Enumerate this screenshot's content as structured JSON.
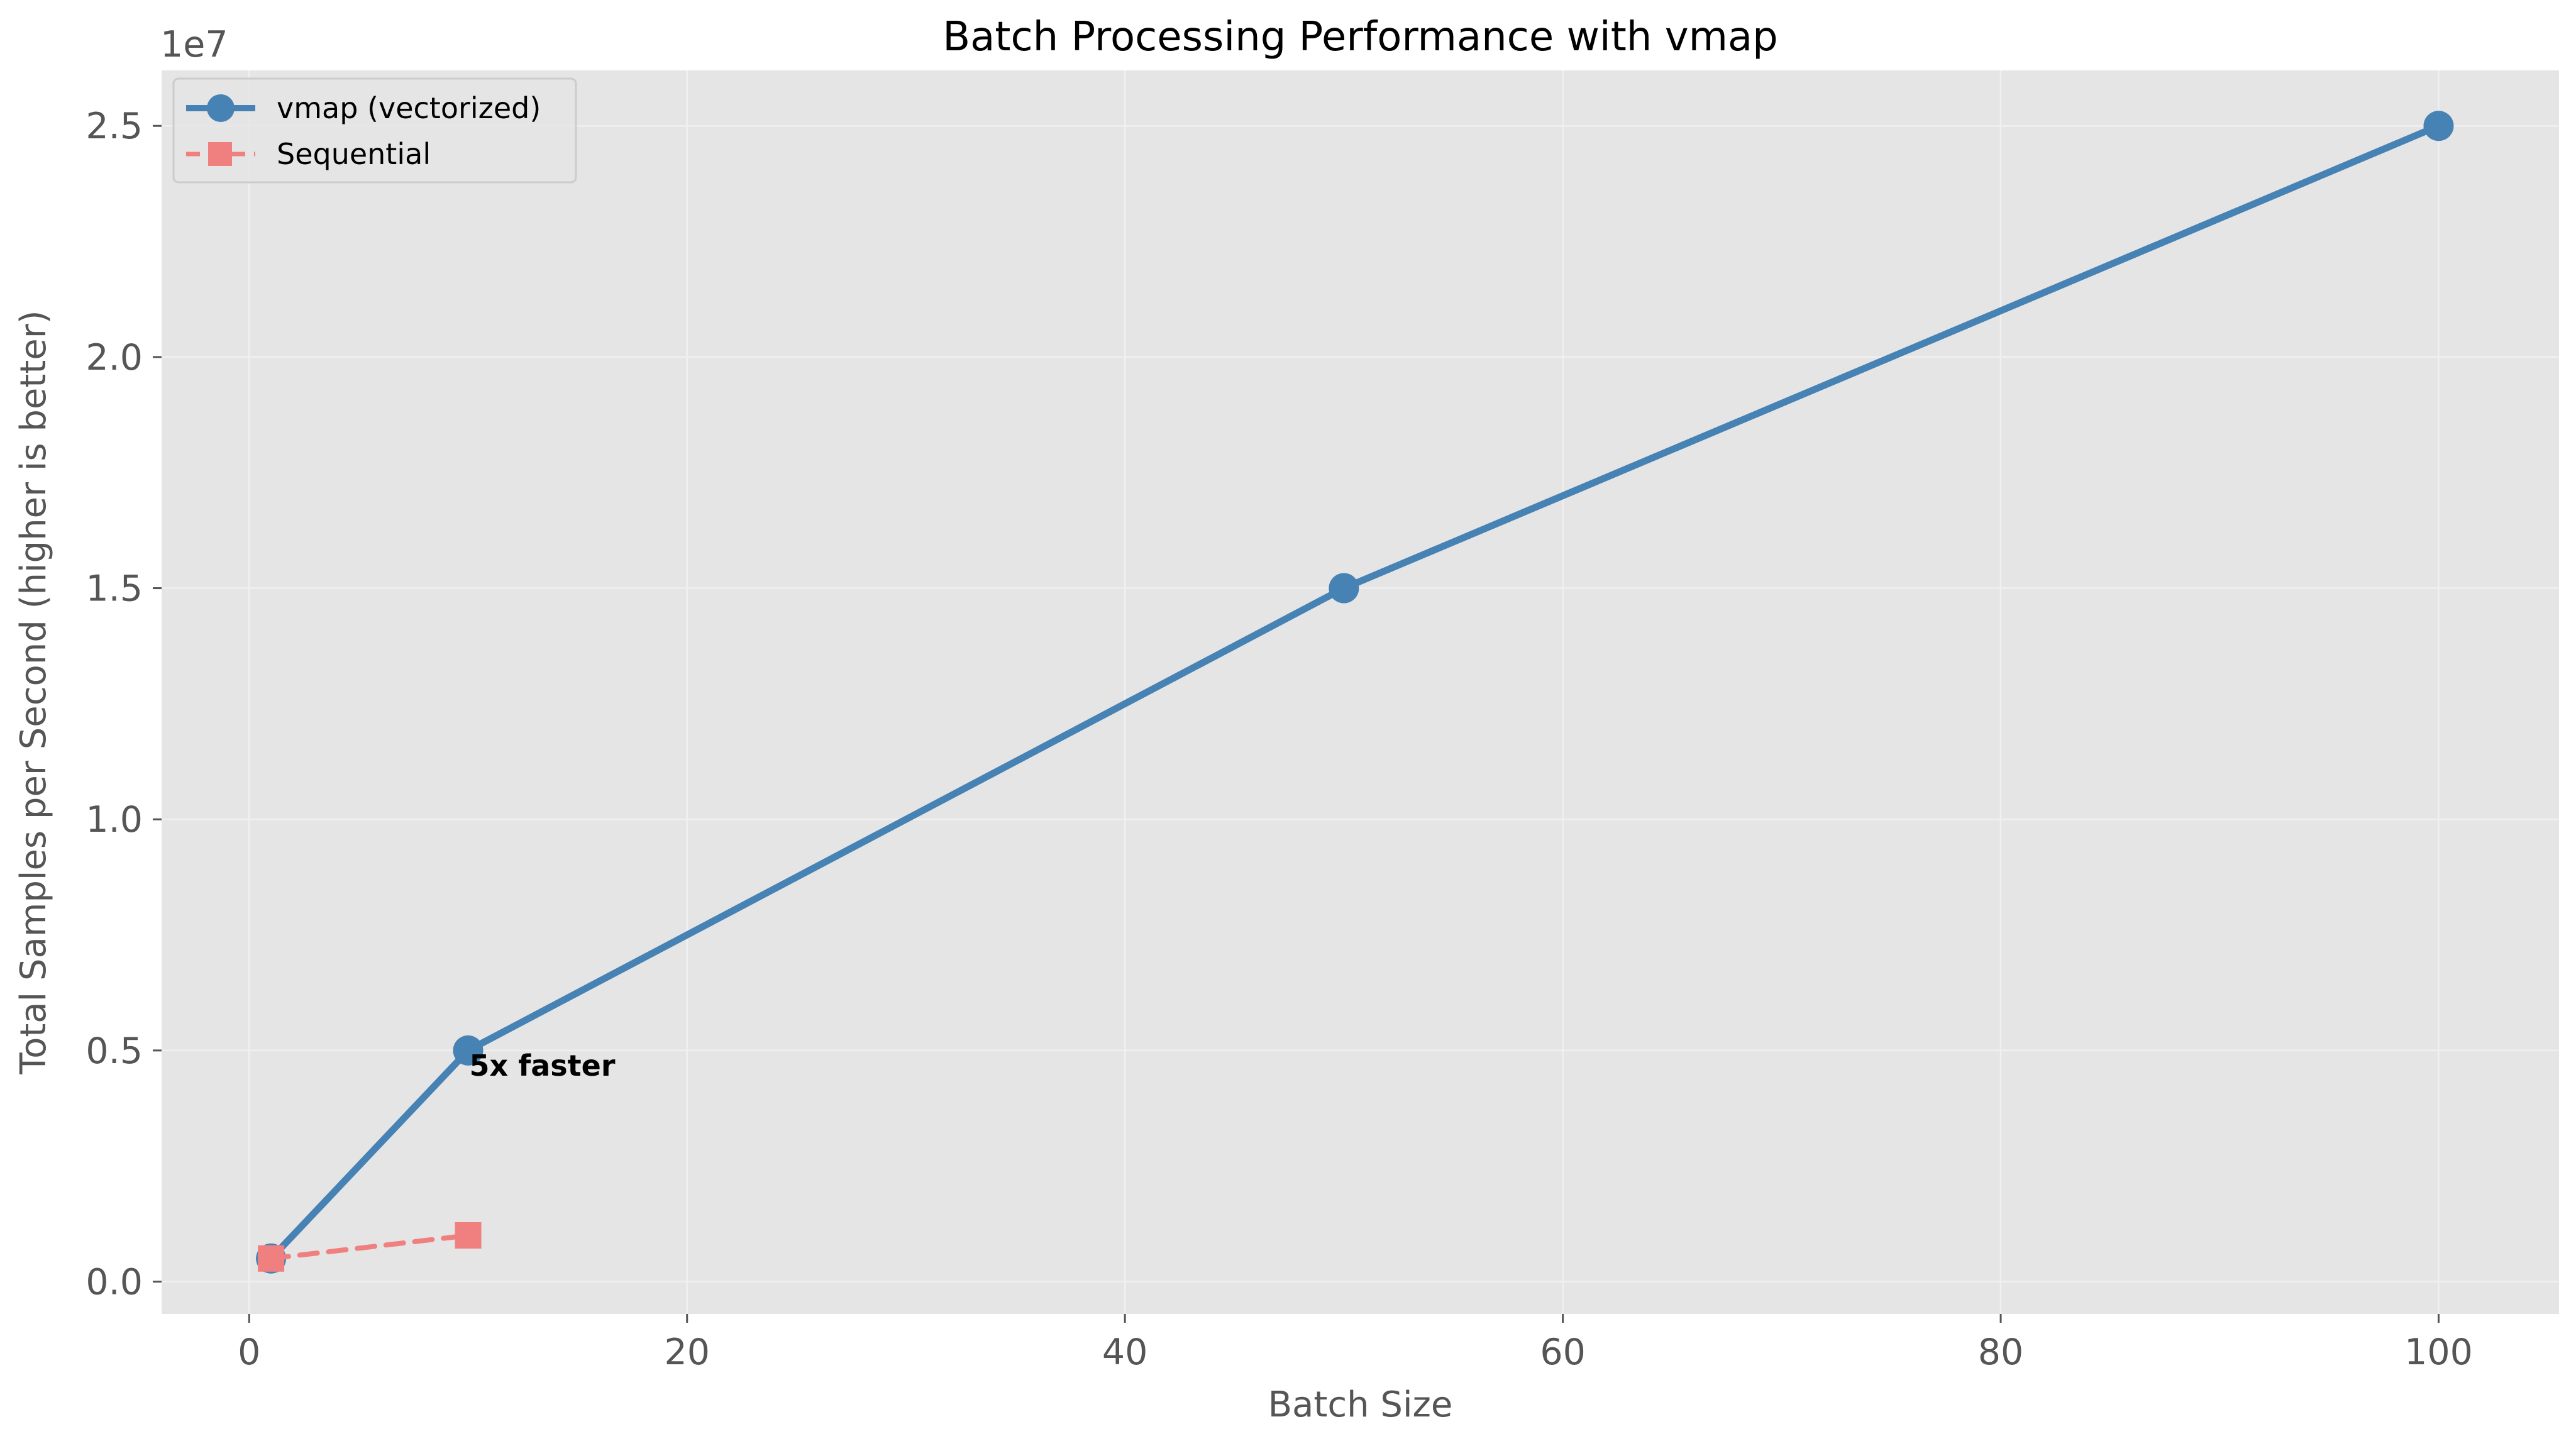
{
  "chart_data": {
    "type": "line",
    "title": "Batch Processing Performance with vmap",
    "xlabel": "Batch Size",
    "ylabel": "Total Samples per Second (higher is better)",
    "y_offset_label": "1e7",
    "xlim": [
      -4,
      105.5
    ],
    "ylim": [
      -700000,
      26200000
    ],
    "xticks": [
      0,
      20,
      40,
      60,
      80,
      100
    ],
    "xtick_labels": [
      "0",
      "20",
      "40",
      "60",
      "80",
      "100"
    ],
    "yticks": [
      0,
      5000000,
      10000000,
      15000000,
      20000000,
      25000000
    ],
    "ytick_labels": [
      "0.0",
      "0.5",
      "1.0",
      "1.5",
      "2.0",
      "2.5"
    ],
    "grid": true,
    "legend_position": "top-left",
    "series": [
      {
        "name": "vmap (vectorized)",
        "x": [
          1,
          10,
          50,
          100
        ],
        "y": [
          500000,
          5000000,
          15000000,
          25000000
        ],
        "color": "#4682b4",
        "line_style": "solid",
        "marker": "circle"
      },
      {
        "name": "Sequential",
        "x": [
          1,
          10
        ],
        "y": [
          500000,
          1000000
        ],
        "color": "#f08080",
        "line_style": "dashed",
        "marker": "square"
      }
    ],
    "annotations": [
      {
        "text": "5x faster",
        "x": 10,
        "y": 5000000
      }
    ]
  }
}
